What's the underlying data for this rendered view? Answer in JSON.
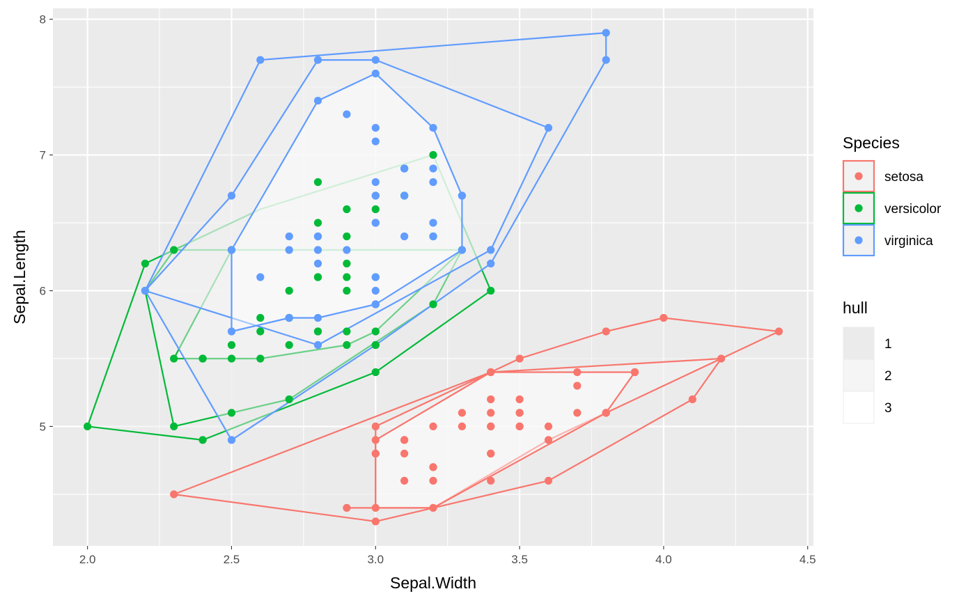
{
  "chart_data": {
    "type": "scatter",
    "xlabel": "Sepal.Width",
    "ylabel": "Sepal.Length",
    "xlim": [
      1.88,
      4.52
    ],
    "ylim": [
      4.12,
      8.08
    ],
    "x_ticks": [
      2.0,
      2.5,
      3.0,
      3.5,
      4.0,
      4.5
    ],
    "x_tick_labels": [
      "2.0",
      "2.5",
      "3.0",
      "3.5",
      "4.0",
      "4.5"
    ],
    "y_ticks": [
      5,
      6,
      7,
      8
    ],
    "y_tick_labels": [
      "5",
      "6",
      "7",
      "8"
    ],
    "grid": true,
    "legend_placement": "right",
    "legend": {
      "title": "Species",
      "entries": [
        "setosa",
        "versicolor",
        "virginica"
      ]
    },
    "hull_legend": {
      "title": "hull",
      "entries": [
        "1",
        "2",
        "3"
      ]
    },
    "colors": {
      "setosa": "#F8766D",
      "versicolor": "#00BA38",
      "virginica": "#619CFF",
      "panel": "#EBEBEB",
      "grid": "#FFFFFF",
      "hull_fills": [
        "#EBEBEB",
        "#F5F5F5",
        "#FFFFFF"
      ]
    },
    "series": [
      {
        "name": "setosa",
        "points": [
          [
            3.5,
            5.1
          ],
          [
            3.0,
            4.9
          ],
          [
            3.2,
            4.7
          ],
          [
            3.1,
            4.6
          ],
          [
            3.6,
            5.0
          ],
          [
            3.9,
            5.4
          ],
          [
            3.4,
            4.6
          ],
          [
            3.4,
            5.0
          ],
          [
            2.9,
            4.4
          ],
          [
            3.1,
            4.9
          ],
          [
            3.7,
            5.4
          ],
          [
            3.4,
            4.8
          ],
          [
            3.0,
            4.8
          ],
          [
            3.0,
            4.3
          ],
          [
            4.0,
            5.8
          ],
          [
            4.4,
            5.7
          ],
          [
            3.9,
            5.4
          ],
          [
            3.5,
            5.1
          ],
          [
            3.8,
            5.7
          ],
          [
            3.8,
            5.1
          ],
          [
            3.4,
            5.4
          ],
          [
            3.7,
            5.1
          ],
          [
            3.6,
            4.6
          ],
          [
            3.3,
            5.1
          ],
          [
            3.4,
            4.8
          ],
          [
            3.0,
            5.0
          ],
          [
            3.4,
            5.0
          ],
          [
            3.5,
            5.2
          ],
          [
            3.4,
            5.2
          ],
          [
            3.2,
            4.7
          ],
          [
            3.1,
            4.8
          ],
          [
            3.4,
            5.4
          ],
          [
            4.1,
            5.2
          ],
          [
            4.2,
            5.5
          ],
          [
            3.1,
            4.9
          ],
          [
            3.2,
            5.0
          ],
          [
            3.5,
            5.5
          ],
          [
            3.6,
            4.9
          ],
          [
            3.0,
            4.4
          ],
          [
            3.4,
            5.1
          ],
          [
            3.5,
            5.0
          ],
          [
            2.3,
            4.5
          ],
          [
            3.2,
            4.4
          ],
          [
            3.5,
            5.0
          ],
          [
            3.8,
            5.1
          ],
          [
            3.0,
            4.8
          ],
          [
            3.8,
            5.1
          ],
          [
            3.2,
            4.6
          ],
          [
            3.7,
            5.3
          ],
          [
            3.3,
            5.0
          ]
        ],
        "hulls": [
          [
            [
              2.3,
              4.5
            ],
            [
              3.0,
              4.3
            ],
            [
              3.6,
              4.6
            ],
            [
              4.1,
              5.2
            ],
            [
              4.2,
              5.5
            ],
            [
              4.4,
              5.7
            ],
            [
              4.0,
              5.8
            ],
            [
              3.8,
              5.7
            ],
            [
              3.5,
              5.5
            ],
            [
              3.4,
              5.4
            ]
          ],
          [
            [
              3.0,
              4.4
            ],
            [
              3.2,
              4.4
            ],
            [
              3.6,
              4.9
            ],
            [
              4.2,
              5.5
            ],
            [
              3.4,
              5.4
            ],
            [
              3.0,
              5.0
            ],
            [
              3.0,
              4.9
            ]
          ],
          [
            [
              2.9,
              4.4
            ],
            [
              3.2,
              4.4
            ],
            [
              3.8,
              5.1
            ],
            [
              3.9,
              5.4
            ],
            [
              3.4,
              5.4
            ],
            [
              3.0,
              4.9
            ],
            [
              3.0,
              4.4
            ]
          ]
        ]
      },
      {
        "name": "versicolor",
        "points": [
          [
            3.2,
            7.0
          ],
          [
            3.2,
            6.4
          ],
          [
            3.1,
            6.9
          ],
          [
            2.3,
            5.5
          ],
          [
            2.8,
            6.5
          ],
          [
            2.8,
            5.7
          ],
          [
            3.3,
            6.3
          ],
          [
            2.4,
            4.9
          ],
          [
            2.9,
            6.6
          ],
          [
            2.7,
            5.2
          ],
          [
            2.0,
            5.0
          ],
          [
            3.0,
            5.9
          ],
          [
            2.2,
            6.0
          ],
          [
            2.9,
            6.1
          ],
          [
            2.9,
            5.6
          ],
          [
            3.1,
            6.7
          ],
          [
            3.0,
            5.6
          ],
          [
            2.7,
            5.8
          ],
          [
            2.2,
            6.2
          ],
          [
            2.5,
            5.6
          ],
          [
            3.2,
            5.9
          ],
          [
            2.8,
            6.1
          ],
          [
            2.5,
            6.3
          ],
          [
            2.8,
            6.1
          ],
          [
            2.9,
            6.4
          ],
          [
            3.0,
            6.6
          ],
          [
            2.8,
            6.8
          ],
          [
            3.0,
            6.7
          ],
          [
            2.9,
            6.0
          ],
          [
            2.6,
            5.7
          ],
          [
            2.4,
            5.5
          ],
          [
            2.4,
            5.5
          ],
          [
            2.7,
            5.8
          ],
          [
            2.7,
            6.0
          ],
          [
            3.0,
            5.4
          ],
          [
            3.4,
            6.0
          ],
          [
            3.1,
            6.7
          ],
          [
            2.3,
            6.3
          ],
          [
            3.0,
            5.6
          ],
          [
            2.5,
            5.5
          ],
          [
            2.6,
            5.5
          ],
          [
            3.0,
            6.1
          ],
          [
            2.6,
            5.8
          ],
          [
            2.3,
            5.0
          ],
          [
            2.7,
            5.6
          ],
          [
            3.0,
            5.7
          ],
          [
            2.9,
            5.7
          ],
          [
            2.9,
            6.2
          ],
          [
            2.5,
            5.1
          ],
          [
            2.8,
            5.7
          ]
        ],
        "hulls": [
          [
            [
              2.0,
              5.0
            ],
            [
              2.4,
              4.9
            ],
            [
              3.0,
              5.4
            ],
            [
              3.4,
              6.0
            ],
            [
              3.2,
              7.0
            ],
            [
              2.6,
              6.6
            ],
            [
              2.2,
              6.2
            ]
          ],
          [
            [
              2.3,
              5.0
            ],
            [
              2.5,
              5.1
            ],
            [
              2.7,
              5.2
            ],
            [
              3.2,
              5.9
            ],
            [
              3.3,
              6.3
            ],
            [
              2.3,
              6.3
            ],
            [
              2.2,
              6.0
            ]
          ],
          [
            [
              2.3,
              5.5
            ],
            [
              2.6,
              5.5
            ],
            [
              2.9,
              5.6
            ],
            [
              3.0,
              5.7
            ],
            [
              3.3,
              6.3
            ],
            [
              2.5,
              6.3
            ]
          ]
        ]
      },
      {
        "name": "virginica",
        "points": [
          [
            3.3,
            6.3
          ],
          [
            2.7,
            5.8
          ],
          [
            3.0,
            7.1
          ],
          [
            2.9,
            6.3
          ],
          [
            3.0,
            6.5
          ],
          [
            3.0,
            7.6
          ],
          [
            2.5,
            4.9
          ],
          [
            2.9,
            7.3
          ],
          [
            2.5,
            6.7
          ],
          [
            3.6,
            7.2
          ],
          [
            3.2,
            6.5
          ],
          [
            2.7,
            6.4
          ],
          [
            3.0,
            6.8
          ],
          [
            2.5,
            5.7
          ],
          [
            2.8,
            5.8
          ],
          [
            3.2,
            6.4
          ],
          [
            3.0,
            6.5
          ],
          [
            3.8,
            7.7
          ],
          [
            2.6,
            7.7
          ],
          [
            2.2,
            6.0
          ],
          [
            3.2,
            6.9
          ],
          [
            2.8,
            5.6
          ],
          [
            2.8,
            7.7
          ],
          [
            2.7,
            6.3
          ],
          [
            3.3,
            6.7
          ],
          [
            3.2,
            7.2
          ],
          [
            2.8,
            6.2
          ],
          [
            3.0,
            6.1
          ],
          [
            2.8,
            6.4
          ],
          [
            3.0,
            7.2
          ],
          [
            2.8,
            7.4
          ],
          [
            3.8,
            7.9
          ],
          [
            2.8,
            6.4
          ],
          [
            2.8,
            6.3
          ],
          [
            2.6,
            6.1
          ],
          [
            3.0,
            7.7
          ],
          [
            3.4,
            6.3
          ],
          [
            3.1,
            6.4
          ],
          [
            3.0,
            6.0
          ],
          [
            3.1,
            6.9
          ],
          [
            3.1,
            6.7
          ],
          [
            3.1,
            6.9
          ],
          [
            2.7,
            5.8
          ],
          [
            3.2,
            6.8
          ],
          [
            3.3,
            6.7
          ],
          [
            3.0,
            6.7
          ],
          [
            2.5,
            6.3
          ],
          [
            3.0,
            6.5
          ],
          [
            3.4,
            6.2
          ],
          [
            3.0,
            5.9
          ]
        ],
        "hulls": [
          [
            [
              2.2,
              6.0
            ],
            [
              2.6,
              7.7
            ],
            [
              3.8,
              7.9
            ],
            [
              3.8,
              7.7
            ],
            [
              3.4,
              6.2
            ],
            [
              3.0,
              5.6
            ],
            [
              2.5,
              4.9
            ]
          ],
          [
            [
              2.2,
              6.0
            ],
            [
              2.8,
              5.6
            ],
            [
              3.4,
              6.3
            ],
            [
              3.6,
              7.2
            ],
            [
              3.0,
              7.7
            ],
            [
              2.8,
              7.7
            ],
            [
              2.5,
              6.7
            ]
          ],
          [
            [
              2.5,
              5.7
            ],
            [
              2.5,
              6.3
            ],
            [
              2.8,
              7.4
            ],
            [
              3.0,
              7.6
            ],
            [
              3.2,
              7.2
            ],
            [
              3.3,
              6.7
            ],
            [
              3.3,
              6.3
            ],
            [
              3.0,
              5.9
            ],
            [
              2.8,
              5.8
            ],
            [
              2.7,
              5.8
            ]
          ]
        ]
      }
    ]
  }
}
